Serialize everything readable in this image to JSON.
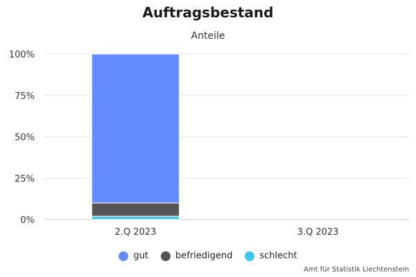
{
  "chart_data": {
    "type": "bar",
    "stacked": true,
    "title": "Auftragsbestand",
    "subtitle": "Anteile",
    "xlabel": "",
    "ylabel": "",
    "categories": [
      "2.Q 2023",
      "3.Q 2023"
    ],
    "y_ticks": [
      "0%",
      "25%",
      "50%",
      "75%",
      "100%"
    ],
    "ylim": [
      0,
      100
    ],
    "grid": true,
    "legend_position": "bottom",
    "series": [
      {
        "name": "schlecht",
        "color": "#3ec6f0",
        "values": [
          2,
          null
        ]
      },
      {
        "name": "befriedigend",
        "color": "#555555",
        "values": [
          8,
          null
        ]
      },
      {
        "name": "gut",
        "color": "#648cff",
        "values": [
          90,
          null
        ]
      }
    ]
  },
  "legend_order": [
    "gut",
    "befriedigend",
    "schlecht"
  ],
  "credit": "Amt für Statistik Liechtenstein"
}
